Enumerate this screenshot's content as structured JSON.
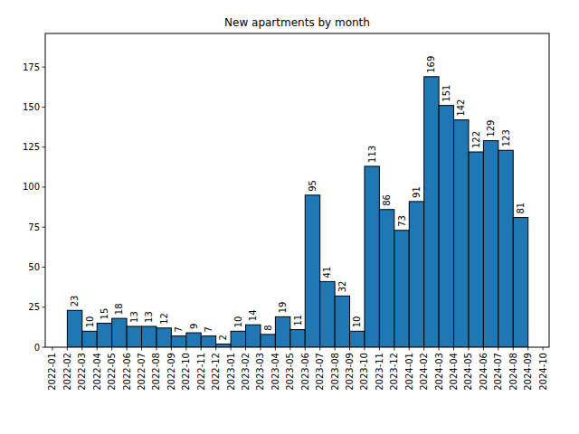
{
  "chart_data": {
    "type": "histogram",
    "title": "New apartments by month",
    "bins": [
      "2022-02",
      "2022-03",
      "2022-04",
      "2022-05",
      "2022-06",
      "2022-07",
      "2022-08",
      "2022-09",
      "2022-10",
      "2022-11",
      "2022-12",
      "2023-01",
      "2023-02",
      "2023-03",
      "2023-04",
      "2023-05",
      "2023-06",
      "2023-07",
      "2023-08",
      "2023-09",
      "2023-10",
      "2023-11",
      "2023-12",
      "2024-01",
      "2024-02",
      "2024-03",
      "2024-04",
      "2024-05",
      "2024-06",
      "2024-07",
      "2024-08",
      "2024-09"
    ],
    "values": [
      23,
      10,
      15,
      18,
      13,
      13,
      12,
      7,
      9,
      7,
      2,
      10,
      14,
      8,
      19,
      11,
      95,
      41,
      32,
      10,
      113,
      86,
      73,
      91,
      169,
      151,
      142,
      122,
      129,
      123,
      81
    ],
    "color": "#1f77b4",
    "data_labels": true,
    "xlim": [
      "2021-12-17",
      "2024-10-14"
    ],
    "xticks": [
      "2022-01",
      "2022-02",
      "2022-03",
      "2022-04",
      "2022-05",
      "2022-06",
      "2022-07",
      "2022-08",
      "2022-09",
      "2022-10",
      "2022-11",
      "2022-12",
      "2023-01",
      "2023-02",
      "2023-03",
      "2023-04",
      "2023-05",
      "2023-06",
      "2023-07",
      "2023-08",
      "2023-09",
      "2023-10",
      "2023-11",
      "2023-12",
      "2024-01",
      "2024-02",
      "2024-03",
      "2024-04",
      "2024-05",
      "2024-06",
      "2024-07",
      "2024-08",
      "2024-09",
      "2024-10"
    ],
    "ylim": [
      0,
      196
    ],
    "yticks": [
      0,
      25,
      50,
      75,
      100,
      125,
      150,
      175
    ]
  }
}
